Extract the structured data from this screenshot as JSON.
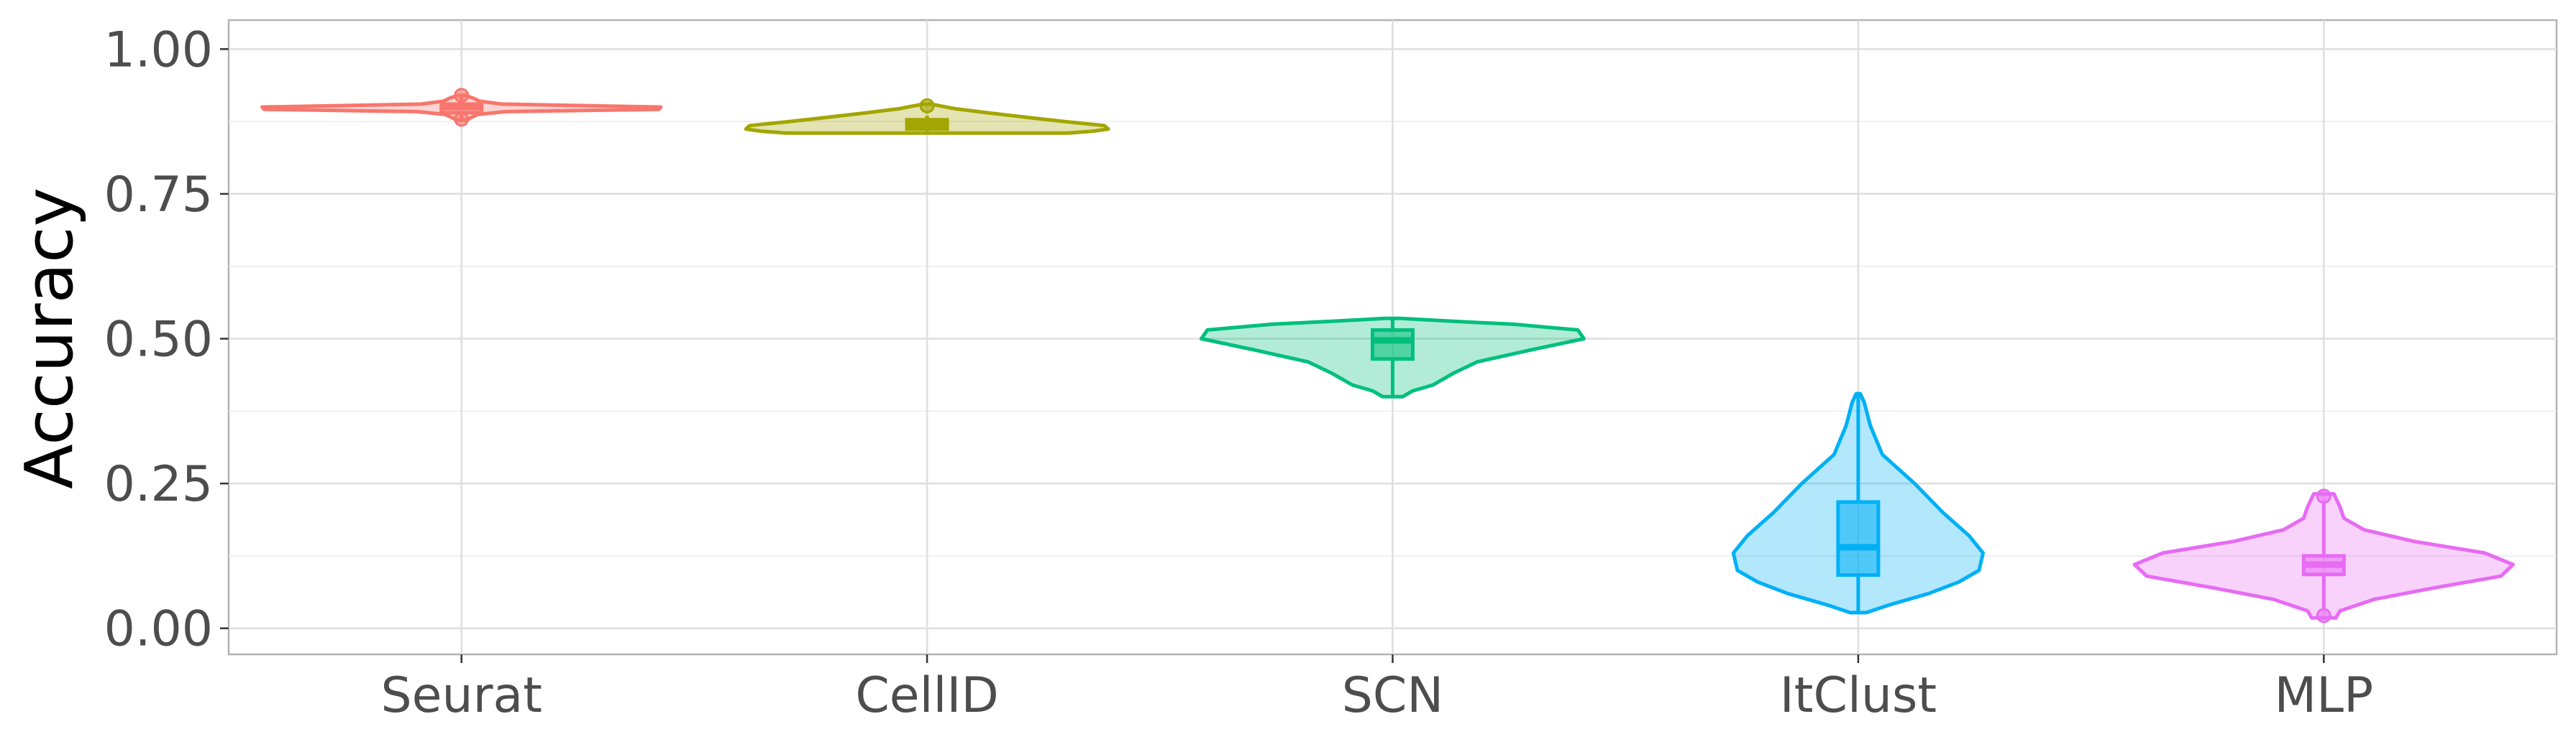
{
  "chart_data": {
    "type": "violin",
    "title": "",
    "xlabel": "",
    "ylabel": "Accuracy",
    "ylim": [
      -0.045,
      1.05
    ],
    "y_ticks": [
      0,
      0.25,
      0.5,
      0.75,
      1
    ],
    "y_tick_labels": [
      "0.00",
      "0.25",
      "0.50",
      "0.75",
      "1.00"
    ],
    "grid": true,
    "legend": "none",
    "categories": [
      "Seurat",
      "CellID",
      "SCN",
      "ItClust",
      "MLP"
    ],
    "series": [
      {
        "color": "#F8766D",
        "min": 0.877,
        "max": 0.92,
        "box": {
          "q1": 0.89,
          "median": 0.9,
          "q3": 0.905,
          "whisker_low": 0.877,
          "whisker_high": 0.92
        },
        "outliers": [
          0.92,
          0.879
        ],
        "violin_profile": [
          [
            0.877,
            0.02
          ],
          [
            0.882,
            0.05
          ],
          [
            0.887,
            0.08
          ],
          [
            0.892,
            0.22
          ],
          [
            0.896,
            0.98
          ],
          [
            0.9,
            0.99
          ],
          [
            0.905,
            0.2
          ],
          [
            0.91,
            0.09
          ],
          [
            0.915,
            0.06
          ],
          [
            0.92,
            0.02
          ]
        ]
      },
      {
        "color": "#A3A500",
        "min": 0.855,
        "max": 0.905,
        "box": {
          "q1": 0.862,
          "median": 0.87,
          "q3": 0.878,
          "whisker_low": 0.855,
          "whisker_high": 0.885
        },
        "outliers": [
          0.902
        ],
        "violin_profile": [
          [
            0.855,
            0.7
          ],
          [
            0.858,
            0.82
          ],
          [
            0.862,
            0.9
          ],
          [
            0.868,
            0.88
          ],
          [
            0.875,
            0.68
          ],
          [
            0.882,
            0.5
          ],
          [
            0.89,
            0.3
          ],
          [
            0.897,
            0.14
          ],
          [
            0.905,
            0.02
          ]
        ]
      },
      {
        "color": "#00BF7D",
        "min": 0.4,
        "max": 0.535,
        "box": {
          "q1": 0.465,
          "median": 0.497,
          "q3": 0.515,
          "whisker_low": 0.4,
          "whisker_high": 0.535
        },
        "outliers": [],
        "violin_profile": [
          [
            0.4,
            0.05
          ],
          [
            0.41,
            0.1
          ],
          [
            0.42,
            0.2
          ],
          [
            0.44,
            0.3
          ],
          [
            0.46,
            0.42
          ],
          [
            0.48,
            0.68
          ],
          [
            0.5,
            0.95
          ],
          [
            0.515,
            0.92
          ],
          [
            0.525,
            0.6
          ],
          [
            0.53,
            0.3
          ],
          [
            0.535,
            0.04
          ]
        ]
      },
      {
        "color": "#00B0F6",
        "min": 0.027,
        "max": 0.405,
        "box": {
          "q1": 0.092,
          "median": 0.14,
          "q3": 0.218,
          "whisker_low": 0.027,
          "whisker_high": 0.405
        },
        "outliers": [],
        "violin_profile": [
          [
            0.027,
            0.04
          ],
          [
            0.04,
            0.15
          ],
          [
            0.06,
            0.35
          ],
          [
            0.08,
            0.5
          ],
          [
            0.1,
            0.6
          ],
          [
            0.13,
            0.62
          ],
          [
            0.16,
            0.55
          ],
          [
            0.2,
            0.42
          ],
          [
            0.25,
            0.28
          ],
          [
            0.3,
            0.12
          ],
          [
            0.35,
            0.06
          ],
          [
            0.39,
            0.03
          ],
          [
            0.405,
            0.01
          ]
        ]
      },
      {
        "color": "#E76BF3",
        "min": 0.018,
        "max": 0.232,
        "box": {
          "q1": 0.093,
          "median": 0.11,
          "q3": 0.125,
          "whisker_low": 0.035,
          "whisker_high": 0.22
        },
        "outliers": [
          0.228,
          0.022
        ],
        "violin_profile": [
          [
            0.018,
            0.06
          ],
          [
            0.03,
            0.08
          ],
          [
            0.05,
            0.25
          ],
          [
            0.07,
            0.55
          ],
          [
            0.09,
            0.88
          ],
          [
            0.11,
            0.94
          ],
          [
            0.13,
            0.8
          ],
          [
            0.15,
            0.45
          ],
          [
            0.17,
            0.2
          ],
          [
            0.19,
            0.1
          ],
          [
            0.21,
            0.08
          ],
          [
            0.232,
            0.05
          ]
        ]
      }
    ]
  }
}
